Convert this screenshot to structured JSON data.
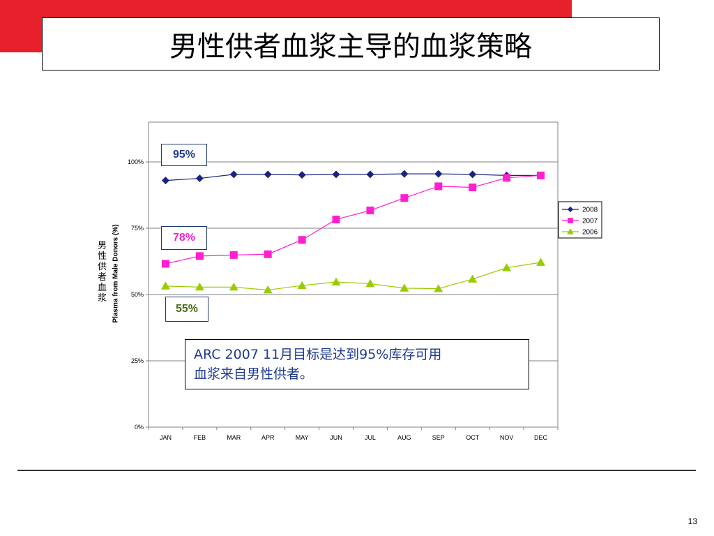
{
  "slide": {
    "title": "男性供者血浆主导的血浆策略",
    "page_number": "13",
    "accent_color": "#e8202b"
  },
  "callouts": {
    "c2008": "95%",
    "c2007": "78%",
    "c2006": "55%"
  },
  "note": {
    "line1": "ARC 2007 11月目标是达到95%库存可用",
    "line2": "血浆来自男性供者。"
  },
  "axis_label_cn": "男性供者血浆",
  "chart_data": {
    "type": "line",
    "ylabel": "Plasma from Male Donors (%)",
    "ylim": [
      0,
      115
    ],
    "yticks": [
      "0%",
      "25%",
      "50%",
      "75%",
      "100%"
    ],
    "yticks_values": [
      0,
      25,
      50,
      75,
      100
    ],
    "grid": true,
    "legend_position": "right",
    "categories": [
      "JAN",
      "FEB",
      "MAR",
      "APR",
      "MAY",
      "JUN",
      "JUL",
      "AUG",
      "SEP",
      "OCT",
      "NOV",
      "DEC"
    ],
    "series": [
      {
        "name": "2008",
        "color": "#1a237e",
        "marker": "diamond",
        "values": [
          93.0,
          93.8,
          95.3,
          95.3,
          95.1,
          95.3,
          95.3,
          95.5,
          95.5,
          95.3,
          94.9,
          94.9
        ]
      },
      {
        "name": "2007",
        "color": "#ff1fd1",
        "marker": "square",
        "values": [
          61.6,
          64.5,
          64.9,
          65.2,
          70.6,
          78.3,
          81.7,
          86.4,
          90.8,
          90.4,
          94.0,
          94.9
        ]
      },
      {
        "name": "2006",
        "color": "#99cc00",
        "marker": "triangle",
        "values": [
          53.2,
          52.8,
          52.8,
          51.7,
          53.4,
          54.7,
          54.1,
          52.4,
          52.2,
          55.8,
          60.1,
          62.1
        ]
      }
    ]
  }
}
